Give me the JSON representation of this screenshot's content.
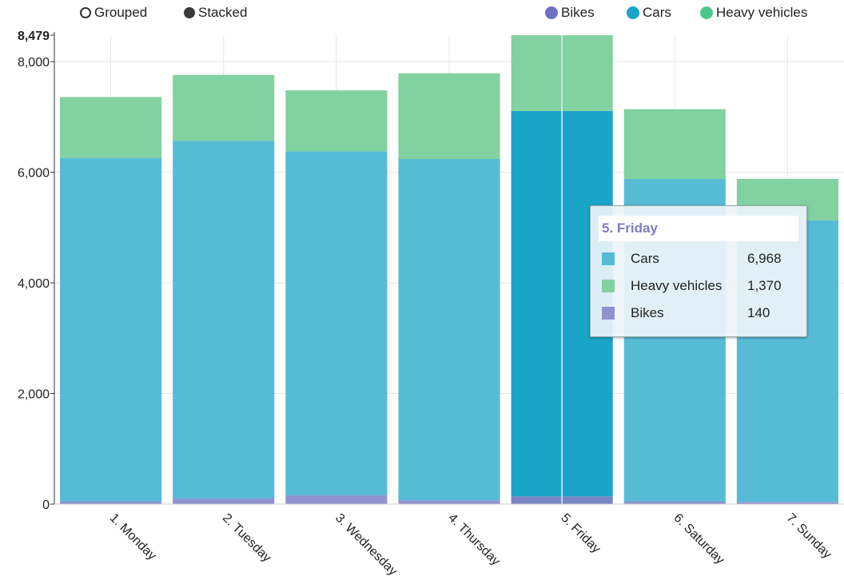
{
  "controls": {
    "grouped_label": "Grouped",
    "stacked_label": "Stacked"
  },
  "legend": [
    {
      "label": "Bikes",
      "color": "#6b72c4"
    },
    {
      "label": "Cars",
      "color": "#1aa5c8"
    },
    {
      "label": "Heavy vehicles",
      "color": "#4cc98a"
    }
  ],
  "tooltip": {
    "title": "5. Friday",
    "rows": [
      {
        "label": "Cars",
        "value": "6,968",
        "color": "#56bcd6"
      },
      {
        "label": "Heavy vehicles",
        "value": "1,370",
        "color": "#82d1a0"
      },
      {
        "label": "Bikes",
        "value": "140",
        "color": "#9193cf"
      }
    ]
  },
  "chart_data": {
    "type": "bar",
    "stacked": true,
    "categories": [
      "1. Monday",
      "2. Tuesday",
      "3. Wednesday",
      "4. Thursday",
      "5. Friday",
      "6. Saturday",
      "7. Sunday"
    ],
    "series": [
      {
        "name": "Bikes",
        "color": "#9193cf",
        "values": [
          50,
          100,
          160,
          70,
          140,
          50,
          40
        ]
      },
      {
        "name": "Cars",
        "color": "#56bcd6",
        "values": [
          6210,
          6470,
          6220,
          6170,
          6968,
          5830,
          5090
        ]
      },
      {
        "name": "Heavy vehicles",
        "color": "#82d1a0",
        "values": [
          1100,
          1190,
          1100,
          1550,
          1370,
          1260,
          750
        ]
      }
    ],
    "highlight": {
      "index": 4,
      "colors": {
        "Bikes": "#7a86c4",
        "Cars": "#1aa5c8",
        "Heavy vehicles": "#82d1a0"
      }
    },
    "ylim": [
      0,
      8479
    ],
    "yticks": [
      0,
      2000,
      4000,
      6000,
      8000
    ],
    "ytick_labels": [
      "0",
      "2,000",
      "4,000",
      "6,000",
      "8,000"
    ],
    "ymax_label": "8,479",
    "grid": true
  }
}
